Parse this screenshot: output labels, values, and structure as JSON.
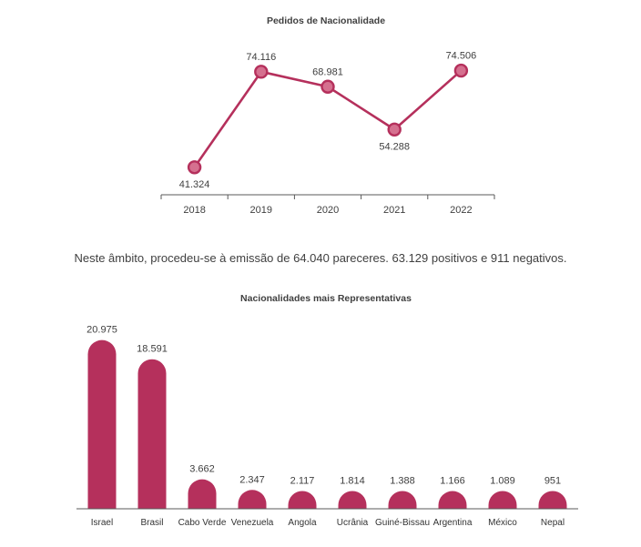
{
  "paragraph": "Neste âmbito, procedeu-se à emissão de 64.040 pareceres. 63.129 positivos e 911 negativos.",
  "colors": {
    "accent": "#b5305c",
    "marker_fill": "#d5708f",
    "axis": "#595959"
  },
  "chart_data": [
    {
      "type": "line",
      "title": "Pedidos de Nacionalidade",
      "categories": [
        "2018",
        "2019",
        "2020",
        "2021",
        "2022"
      ],
      "values": [
        41324,
        74116,
        68981,
        54288,
        74506
      ],
      "data_labels": [
        "41.324",
        "74.116",
        "68.981",
        "54.288",
        "74.506"
      ],
      "xlabel": "",
      "ylabel": "",
      "ylim": [
        30000,
        80000
      ],
      "grid": false
    },
    {
      "type": "bar",
      "title": "Nacionalidades mais Representativas",
      "categories": [
        "Israel",
        "Brasil",
        "Cabo Verde",
        "Venezuela",
        "Angola",
        "Ucrânia",
        "Guiné-Bissau",
        "Argentina",
        "México",
        "Nepal"
      ],
      "values": [
        20975,
        18591,
        3662,
        2347,
        2117,
        1814,
        1388,
        1166,
        1089,
        951
      ],
      "data_labels": [
        "20.975",
        "18.591",
        "3.662",
        "2.347",
        "2.117",
        "1.814",
        "1.388",
        "1.166",
        "1.089",
        "951"
      ],
      "xlabel": "",
      "ylabel": "",
      "ylim": [
        0,
        21500
      ],
      "grid": false
    }
  ]
}
